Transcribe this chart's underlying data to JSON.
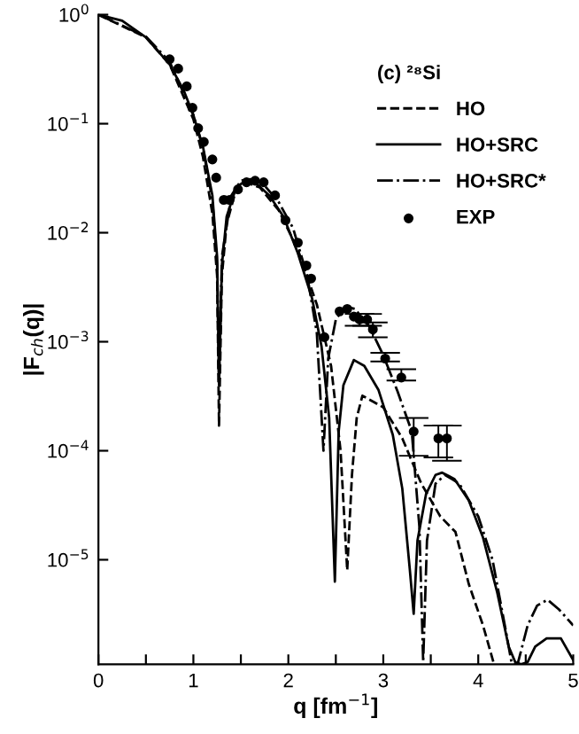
{
  "chart_data": {
    "type": "line",
    "xlabel": "q [fm$^{−1}$]",
    "ylabel": "|F$_{ch}$(q)|",
    "legend_title": "(c) ²⁸Si",
    "log": "y",
    "xlim": [
      0,
      5
    ],
    "ylim": [
      1.1e-06,
      1
    ],
    "xticks": [
      0,
      {
        "value": 0.5,
        "label": null
      },
      1,
      {
        "value": 1.5,
        "label": null
      },
      2,
      {
        "value": 2.5,
        "label": null
      },
      3,
      {
        "value": 3.5,
        "label": null
      },
      4,
      {
        "value": 4.5,
        "label": null
      },
      5
    ],
    "yticks": [
      {
        "value": 1e-05,
        "label": "10$^{−5}$"
      },
      {
        "value": 0.0001,
        "label": "10$^{−4}$"
      },
      {
        "value": 0.001,
        "label": "10$^{−3}$"
      },
      {
        "value": 0.01,
        "label": "10$^{−2}$"
      },
      {
        "value": 0.1,
        "label": "10$^{−1}$"
      },
      {
        "value": 1,
        "label": "10$^{0}$"
      }
    ],
    "grid": false,
    "legend": "top right",
    "series": [
      {
        "name": "HO",
        "line_style": "dashed",
        "color": "#000000",
        "x": [
          0,
          0.5,
          0.75,
          1.0,
          1.1,
          1.2,
          1.25,
          1.27,
          1.3,
          1.35,
          1.45,
          1.55,
          1.7,
          1.9,
          2.1,
          2.3,
          2.45,
          2.55,
          2.62,
          2.67,
          2.72,
          2.78,
          2.9,
          3.0,
          3.2,
          3.4,
          3.6,
          3.76,
          3.9,
          4.05,
          4.16
        ],
        "values": [
          1,
          0.62,
          0.35,
          0.11,
          0.05,
          0.015,
          0.004,
          0.00017,
          0.004,
          0.012,
          0.025,
          0.029,
          0.026,
          0.016,
          0.007,
          0.0022,
          0.0006,
          0.0001,
          8e-06,
          6e-05,
          0.0002,
          0.00032,
          0.00028,
          0.00025,
          0.00013,
          5e-05,
          2.5e-05,
          1.8e-05,
          6e-06,
          2.5e-06,
          1.15e-06
        ]
      },
      {
        "name": "HO+SRC",
        "line_style": "solid",
        "color": "#000000",
        "x": [
          0,
          0.25,
          0.5,
          0.75,
          0.9,
          1.0,
          1.1,
          1.2,
          1.25,
          1.27,
          1.3,
          1.35,
          1.45,
          1.55,
          1.65,
          1.8,
          1.95,
          2.1,
          2.25,
          2.35,
          2.43,
          2.49,
          2.53,
          2.58,
          2.69,
          2.8,
          2.95,
          3.1,
          3.2,
          3.28,
          3.32,
          3.36,
          3.45,
          3.55,
          3.62,
          3.75,
          3.9,
          4.05,
          4.2,
          4.32,
          4.39,
          4.45,
          4.52,
          4.6,
          4.72,
          4.87,
          5.0
        ],
        "values": [
          1,
          0.88,
          0.62,
          0.35,
          0.2,
          0.12,
          0.062,
          0.022,
          0.006,
          0.0004,
          0.005,
          0.014,
          0.026,
          0.03,
          0.029,
          0.022,
          0.014,
          0.0065,
          0.0025,
          0.0009,
          0.0002,
          6.3e-06,
          0.00015,
          0.0004,
          0.00068,
          0.0006,
          0.00036,
          0.00014,
          4.5e-05,
          8e-06,
          3.2e-06,
          1.5e-05,
          4e-05,
          6e-05,
          6.3e-05,
          5.5e-05,
          3.5e-05,
          1.6e-05,
          5e-06,
          1.6e-06,
          1.15e-06,
          1.1e-06,
          1.15e-06,
          1.6e-06,
          1.9e-06,
          1.9e-06,
          1.2e-06
        ]
      },
      {
        "name": "HO+SRC*",
        "line_style": "dashdot",
        "color": "#000000",
        "x": [
          0,
          0.5,
          0.75,
          1.0,
          1.1,
          1.2,
          1.25,
          1.27,
          1.3,
          1.4,
          1.5,
          1.6,
          1.75,
          1.9,
          2.05,
          2.2,
          2.3,
          2.37,
          2.42,
          2.5,
          2.6,
          2.7,
          2.85,
          3.0,
          3.15,
          3.3,
          3.38,
          3.42,
          3.46,
          3.55,
          3.65,
          3.8,
          4.0,
          4.15,
          4.28,
          4.35,
          4.38,
          4.42,
          4.52,
          4.62,
          4.73,
          4.85,
          5.0
        ],
        "values": [
          1,
          0.63,
          0.37,
          0.12,
          0.06,
          0.02,
          0.005,
          0.0004,
          0.006,
          0.022,
          0.03,
          0.031,
          0.027,
          0.019,
          0.011,
          0.004,
          0.0012,
          0.0001,
          0.0007,
          0.0016,
          0.0021,
          0.002,
          0.0014,
          0.00075,
          0.00035,
          0.00015,
          2e-05,
          1.15e-06,
          1.5e-05,
          5e-05,
          6e-05,
          5e-05,
          2.5e-05,
          1e-05,
          2.5e-06,
          1.15e-06,
          1.1e-06,
          1.15e-06,
          2.5e-06,
          3.8e-06,
          4.3e-06,
          3.5e-06,
          2.5e-06
        ]
      },
      {
        "name": "EXP",
        "type": "scatter",
        "marker": "circle",
        "color": "#000000",
        "x": [
          0.75,
          0.84,
          0.93,
          0.99,
          1.05,
          1.11,
          1.2,
          1.24,
          1.32,
          1.38,
          1.47,
          1.56,
          1.65,
          1.74,
          1.86,
          1.97,
          2.1,
          2.19,
          2.24,
          2.38,
          2.54,
          2.62,
          2.69,
          2.75,
          2.83,
          2.89,
          3.02,
          3.19,
          3.32,
          3.58,
          3.67
        ],
        "values": [
          0.39,
          0.32,
          0.22,
          0.14,
          0.091,
          0.068,
          0.047,
          0.032,
          0.02,
          0.02,
          0.025,
          0.029,
          0.03,
          0.029,
          0.022,
          0.013,
          0.0081,
          0.005,
          0.0038,
          0.0011,
          0.0019,
          0.002,
          0.0017,
          0.0016,
          0.0016,
          0.0013,
          0.0007,
          0.00047,
          0.00015,
          0.00013,
          0.00013
        ],
        "errors": [
          null,
          null,
          null,
          null,
          null,
          null,
          null,
          null,
          null,
          null,
          null,
          null,
          null,
          null,
          null,
          null,
          null,
          null,
          null,
          null,
          null,
          null,
          null,
          [
            0.0014,
            0.0018
          ],
          [
            0.0014,
            0.0018
          ],
          [
            0.0011,
            0.0015
          ],
          [
            0.00066,
            0.00079
          ],
          [
            0.00044,
            0.00056
          ],
          [
            9e-05,
            0.0002
          ],
          [
            8.7e-05,
            0.00017
          ],
          [
            8.1e-05,
            0.00017
          ]
        ]
      }
    ]
  }
}
